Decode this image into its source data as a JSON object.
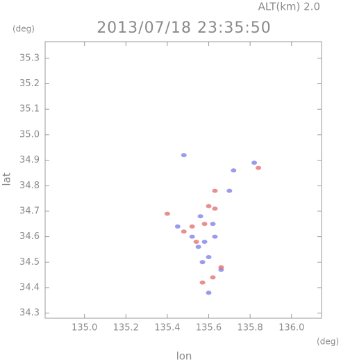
{
  "chart_data": {
    "type": "scatter",
    "title": "2013/07/18 23:35:50",
    "annotation": "ALT(km) 2.0",
    "y_unit": "(deg)",
    "x_unit": "(deg)",
    "xlabel": "lon",
    "ylabel": "lat",
    "xlim": [
      134.81,
      136.145
    ],
    "ylim": [
      34.28,
      35.365
    ],
    "xticks": [
      {
        "value": 135,
        "label": "135.0"
      },
      135.2,
      135.4,
      135.6,
      135.8,
      {
        "value": 136,
        "label": "136.0"
      }
    ],
    "yticks": [
      34.3,
      34.4,
      34.5,
      34.6,
      34.7,
      34.8,
      34.9,
      {
        "value": 35,
        "label": "35.0"
      },
      35.1,
      35.2,
      35.3
    ],
    "series": [
      {
        "color": "#7a7ae8",
        "x": [
          135.48,
          135.72,
          135.56,
          135.62,
          135.58,
          135.6,
          135.57,
          135.66,
          135.6,
          135.45,
          135.82,
          135.7,
          135.63,
          135.52,
          135.55
        ],
        "y": [
          34.92,
          34.86,
          34.68,
          34.65,
          34.58,
          34.52,
          34.5,
          34.47,
          34.38,
          34.64,
          34.89,
          34.78,
          34.6,
          34.6,
          34.56
        ]
      },
      {
        "color": "#e06a6a",
        "x": [
          135.84,
          135.6,
          135.58,
          135.52,
          135.63,
          135.48,
          135.66,
          135.57,
          135.62,
          135.54,
          135.4,
          135.63
        ],
        "y": [
          34.87,
          34.72,
          34.65,
          34.64,
          34.71,
          34.62,
          34.48,
          34.42,
          34.44,
          34.58,
          34.69,
          34.78
        ]
      }
    ]
  }
}
